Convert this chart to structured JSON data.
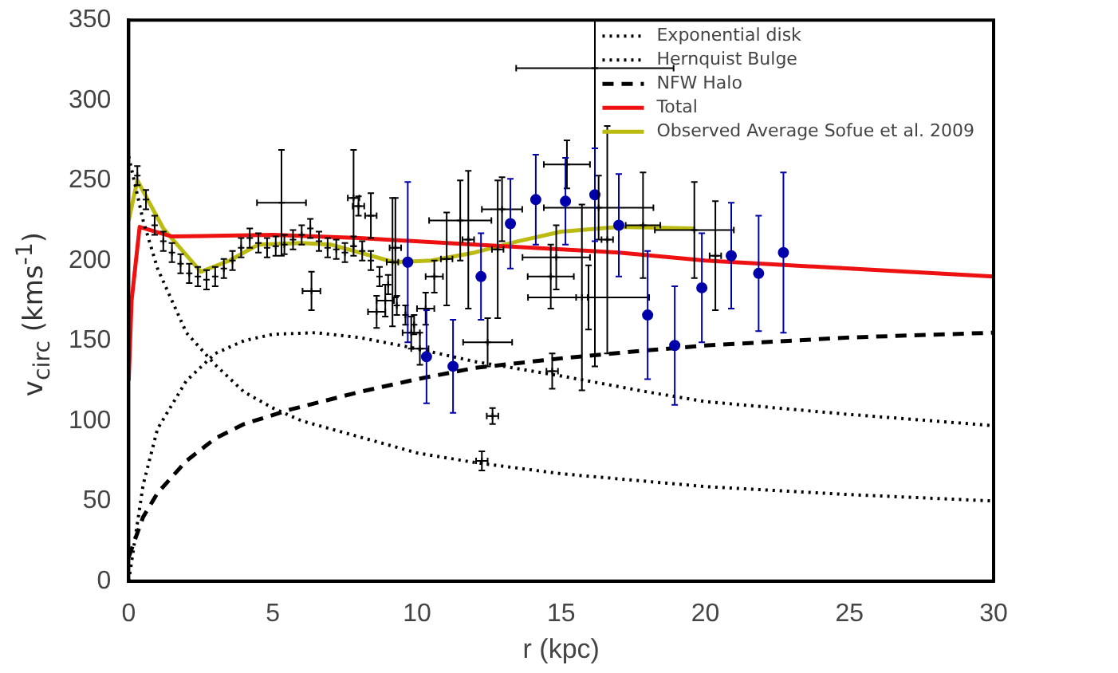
{
  "chart_data": {
    "type": "line",
    "xlabel": "r (kpc)",
    "ylabel": "v$_{circ}$ (kms$^{-1}$)",
    "xlim": [
      0,
      30
    ],
    "ylim": [
      0,
      350
    ],
    "xticks": [
      0,
      5,
      10,
      15,
      20,
      25,
      30
    ],
    "yticks": [
      0,
      50,
      100,
      150,
      200,
      250,
      300,
      350
    ],
    "grid": false,
    "legend": "top right",
    "series": [
      {
        "type": "scatter",
        "color": "#000000",
        "marker": "cross",
        "x": [
          0.3,
          0.6,
          0.9,
          1.2,
          1.5,
          1.8,
          2.1,
          2.4,
          2.7,
          3.0,
          3.3,
          3.6,
          3.9,
          4.2,
          4.5,
          4.8,
          5.1,
          5.4,
          5.7,
          6.0,
          6.3,
          6.6,
          6.9,
          7.2,
          7.5,
          7.8,
          8.1,
          8.4,
          8.7,
          9.0,
          9.3,
          9.6,
          9.9,
          5.3,
          6.34,
          7.8,
          7.97,
          9.15,
          8.4,
          9.25,
          11.03,
          11.78,
          12.8,
          11.5,
          15.2,
          16.3,
          14.64,
          15.95,
          12.45,
          12.95,
          14.83,
          8.6,
          8.9,
          9.8,
          10.1,
          10.3,
          10.6,
          12.62,
          12.25,
          14.69,
          15.72,
          16.6,
          17.84,
          19.62,
          20.35,
          16.17
        ],
        "values": [
          253,
          238,
          222,
          212,
          205,
          198,
          192,
          190,
          188,
          190,
          195,
          200,
          208,
          214,
          211,
          208,
          209,
          210,
          213,
          216,
          220,
          212,
          208,
          207,
          205,
          209,
          206,
          200,
          190,
          185,
          172,
          166,
          160,
          236,
          181,
          239,
          234,
          199,
          228,
          208,
          201,
          213,
          207,
          225,
          260,
          233,
          190,
          177,
          149,
          232,
          202,
          168,
          175,
          155,
          145,
          170,
          190,
          103,
          75,
          131,
          177,
          213,
          222,
          219,
          203,
          320
        ],
        "errors": [
          6,
          6,
          6,
          6,
          6,
          6,
          6,
          6,
          6,
          6,
          6,
          6,
          6,
          6,
          6,
          6,
          6,
          6,
          6,
          6,
          6,
          6,
          6,
          6,
          6,
          6,
          6,
          6,
          6,
          6,
          6,
          6,
          6,
          33,
          12,
          30,
          6,
          40,
          14,
          31,
          29,
          43,
          43,
          25,
          15,
          20,
          20,
          20,
          15,
          20,
          20,
          10,
          10,
          10,
          10,
          10,
          10,
          5,
          6,
          11,
          58,
          71,
          33,
          30,
          34,
          [
            134,
            350
          ]
        ],
        "xerrors": [
          null,
          null,
          null,
          null,
          null,
          null,
          null,
          null,
          null,
          null,
          null,
          null,
          null,
          null,
          null,
          null,
          null,
          null,
          null,
          null,
          null,
          null,
          null,
          null,
          null,
          null,
          null,
          null,
          null,
          null,
          null,
          null,
          null,
          0.85,
          0.31,
          0.2,
          0.2,
          0.2,
          0.2,
          0.2,
          0.2,
          0.2,
          0.2,
          1.08,
          0.8,
          1.9,
          0.8,
          2.1,
          0.85,
          0.7,
          1.17,
          0.3,
          0.3,
          0.3,
          0.3,
          0.3,
          0.3,
          0.2,
          0.2,
          0.2,
          0.2,
          0.2,
          0.6,
          1.37,
          0.2,
          2.73
        ]
      },
      {
        "type": "scatter",
        "color": "#0000aa",
        "marker": "circle",
        "x": [
          9.68,
          10.33,
          11.25,
          12.22,
          13.24,
          14.12,
          15.15,
          16.17,
          17.0,
          18.0,
          18.94,
          19.88,
          20.9,
          21.85,
          22.71
        ],
        "values": [
          199,
          140,
          134,
          190,
          223,
          238,
          237,
          241,
          222,
          166,
          147,
          183,
          203,
          192,
          205
        ],
        "errors": [
          50,
          29,
          29,
          27,
          28,
          28,
          27,
          29,
          32,
          40,
          37,
          34,
          33,
          36,
          50
        ]
      },
      {
        "name": "Exponential disk",
        "color": "#000000",
        "line_style": "dotted",
        "x": [
          0,
          0.5,
          1,
          2,
          3,
          4,
          5,
          6.5,
          8,
          10,
          12,
          15,
          18,
          20,
          25,
          30
        ],
        "values": [
          0,
          60,
          95,
          125,
          142,
          150,
          154,
          155,
          152,
          145,
          137,
          128,
          118,
          112,
          104,
          97
        ]
      },
      {
        "name": "Hernquist Bulge",
        "color": "#000000",
        "line_style": "dotted",
        "x": [
          0,
          0.5,
          1,
          2,
          3,
          4,
          5,
          6,
          8,
          10,
          12,
          15,
          20,
          25,
          30
        ],
        "values": [
          265,
          225,
          195,
          155,
          135,
          118,
          108,
          100,
          90,
          80,
          74,
          67,
          59,
          54,
          50
        ]
      },
      {
        "name": "NFW Halo",
        "color": "#000000",
        "line_style": "dashed",
        "x": [
          0,
          0.5,
          1,
          2,
          3,
          4,
          5.6,
          8,
          10,
          12,
          15,
          18,
          20,
          25,
          30
        ],
        "values": [
          15,
          40,
          55,
          75,
          89,
          98,
          107,
          118,
          126,
          133,
          139,
          144,
          147,
          152,
          155
        ]
      },
      {
        "name": "Total",
        "color": "#ee1111",
        "line_style": "solid",
        "x": [
          0,
          0.1,
          0.38,
          1.5,
          5,
          8,
          12,
          17,
          20,
          25,
          30
        ],
        "values": [
          125,
          175,
          221,
          215,
          216,
          214,
          210,
          205,
          200,
          195,
          190
        ]
      },
      {
        "name": "Observed Average Sofue et al. 2009",
        "color": "#bbbb11",
        "line_style": "solid",
        "x": [
          0,
          0.3,
          1.2,
          2.5,
          3.5,
          4.5,
          6,
          7,
          8,
          9.2,
          10.5,
          12,
          13.5,
          15,
          17,
          19.6
        ],
        "values": [
          225,
          250,
          220,
          193,
          200,
          210,
          211,
          210,
          205,
          199,
          200,
          205,
          212,
          218,
          221,
          220
        ]
      }
    ]
  }
}
